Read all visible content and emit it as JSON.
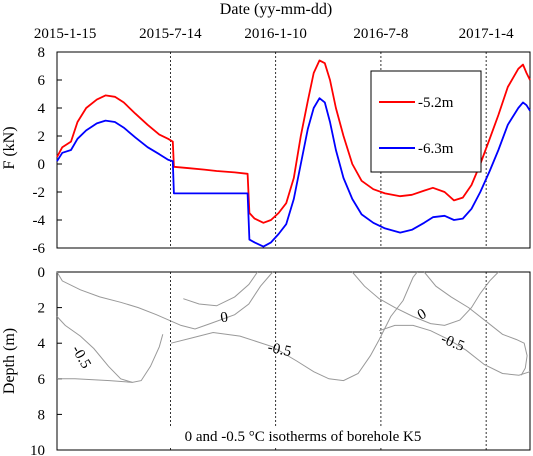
{
  "chart_data": [
    {
      "type": "line",
      "panel": "force",
      "title": "Date (yy-mm-dd)",
      "ylabel": "F (kN)",
      "xlim": [
        "2015-01-01",
        "2017-03-20"
      ],
      "ylim": [
        -6,
        8
      ],
      "yticks": [
        -6,
        -4,
        -2,
        0,
        2,
        4,
        6,
        8
      ],
      "date_ticks": [
        "2015-1-15",
        "2015-7-14",
        "2016-1-10",
        "2016-7-8",
        "2017-1-4"
      ],
      "date_tick_values": [
        "2015-01-15",
        "2015-07-14",
        "2016-01-10",
        "2016-07-08",
        "2017-01-04"
      ],
      "grid": "dotted vertical lines at inner date ticks",
      "legend_position": "right",
      "series": [
        {
          "name": "-5.2m",
          "color": "#ff0000",
          "points": [
            [
              "2015-01-01",
              0.5
            ],
            [
              "2015-01-10",
              1.2
            ],
            [
              "2015-01-25",
              1.6
            ],
            [
              "2015-02-05",
              3.0
            ],
            [
              "2015-02-20",
              4.0
            ],
            [
              "2015-03-10",
              4.6
            ],
            [
              "2015-03-25",
              4.9
            ],
            [
              "2015-04-10",
              4.8
            ],
            [
              "2015-04-25",
              4.4
            ],
            [
              "2015-05-15",
              3.6
            ],
            [
              "2015-06-05",
              2.8
            ],
            [
              "2015-06-25",
              2.1
            ],
            [
              "2015-07-10",
              1.8
            ],
            [
              "2015-07-18",
              1.6
            ],
            [
              "2015-07-20",
              -0.2
            ],
            [
              "2015-08-15",
              -0.3
            ],
            [
              "2015-09-10",
              -0.4
            ],
            [
              "2015-10-01",
              -0.5
            ],
            [
              "2015-11-01",
              -0.6
            ],
            [
              "2015-11-23",
              -0.7
            ],
            [
              "2015-11-26",
              -3.5
            ],
            [
              "2015-12-05",
              -3.9
            ],
            [
              "2015-12-20",
              -4.2
            ],
            [
              "2016-01-02",
              -4.0
            ],
            [
              "2016-01-15",
              -3.5
            ],
            [
              "2016-01-28",
              -2.8
            ],
            [
              "2016-02-10",
              -1.0
            ],
            [
              "2016-02-22",
              2.0
            ],
            [
              "2016-03-05",
              4.5
            ],
            [
              "2016-03-15",
              6.5
            ],
            [
              "2016-03-25",
              7.4
            ],
            [
              "2016-04-03",
              7.2
            ],
            [
              "2016-04-12",
              6.0
            ],
            [
              "2016-04-22",
              4.0
            ],
            [
              "2016-05-05",
              2.0
            ],
            [
              "2016-05-20",
              0.0
            ],
            [
              "2016-06-05",
              -1.2
            ],
            [
              "2016-06-25",
              -1.8
            ],
            [
              "2016-07-15",
              -2.1
            ],
            [
              "2016-08-10",
              -2.3
            ],
            [
              "2016-08-30",
              -2.2
            ],
            [
              "2016-09-20",
              -1.9
            ],
            [
              "2016-10-05",
              -1.7
            ],
            [
              "2016-10-25",
              -2.0
            ],
            [
              "2016-11-10",
              -2.6
            ],
            [
              "2016-11-25",
              -2.4
            ],
            [
              "2016-12-10",
              -1.5
            ],
            [
              "2016-12-25",
              0.0
            ],
            [
              "2017-01-10",
              1.8
            ],
            [
              "2017-01-25",
              3.5
            ],
            [
              "2017-02-10",
              5.5
            ],
            [
              "2017-02-28",
              6.8
            ],
            [
              "2017-03-08",
              7.1
            ],
            [
              "2017-03-14",
              6.5
            ],
            [
              "2017-03-20",
              6.0
            ]
          ]
        },
        {
          "name": "-6.3m",
          "color": "#0000ff",
          "points": [
            [
              "2015-01-01",
              0.2
            ],
            [
              "2015-01-10",
              0.8
            ],
            [
              "2015-01-25",
              1.0
            ],
            [
              "2015-02-05",
              1.8
            ],
            [
              "2015-02-20",
              2.4
            ],
            [
              "2015-03-10",
              2.9
            ],
            [
              "2015-03-25",
              3.1
            ],
            [
              "2015-04-10",
              3.0
            ],
            [
              "2015-04-25",
              2.6
            ],
            [
              "2015-05-15",
              1.9
            ],
            [
              "2015-06-05",
              1.2
            ],
            [
              "2015-06-25",
              0.7
            ],
            [
              "2015-07-10",
              0.3
            ],
            [
              "2015-07-18",
              0.2
            ],
            [
              "2015-07-20",
              -2.1
            ],
            [
              "2015-08-15",
              -2.1
            ],
            [
              "2015-09-10",
              -2.1
            ],
            [
              "2015-10-01",
              -2.1
            ],
            [
              "2015-11-01",
              -2.1
            ],
            [
              "2015-11-23",
              -2.1
            ],
            [
              "2015-11-26",
              -5.4
            ],
            [
              "2015-12-05",
              -5.6
            ],
            [
              "2015-12-20",
              -5.9
            ],
            [
              "2016-01-02",
              -5.6
            ],
            [
              "2016-01-15",
              -5.0
            ],
            [
              "2016-01-28",
              -4.3
            ],
            [
              "2016-02-10",
              -2.5
            ],
            [
              "2016-02-22",
              0.0
            ],
            [
              "2016-03-05",
              2.5
            ],
            [
              "2016-03-15",
              4.0
            ],
            [
              "2016-03-25",
              4.7
            ],
            [
              "2016-04-03",
              4.4
            ],
            [
              "2016-04-12",
              3.0
            ],
            [
              "2016-04-22",
              1.0
            ],
            [
              "2016-05-05",
              -1.0
            ],
            [
              "2016-05-20",
              -2.5
            ],
            [
              "2016-06-05",
              -3.6
            ],
            [
              "2016-06-25",
              -4.2
            ],
            [
              "2016-07-15",
              -4.6
            ],
            [
              "2016-08-10",
              -4.9
            ],
            [
              "2016-08-30",
              -4.7
            ],
            [
              "2016-09-20",
              -4.2
            ],
            [
              "2016-10-05",
              -3.8
            ],
            [
              "2016-10-25",
              -3.7
            ],
            [
              "2016-11-10",
              -4.0
            ],
            [
              "2016-11-25",
              -3.9
            ],
            [
              "2016-12-10",
              -3.2
            ],
            [
              "2016-12-25",
              -2.0
            ],
            [
              "2017-01-10",
              -0.5
            ],
            [
              "2017-01-25",
              1.0
            ],
            [
              "2017-02-10",
              2.8
            ],
            [
              "2017-02-28",
              4.0
            ],
            [
              "2017-03-08",
              4.4
            ],
            [
              "2017-03-14",
              4.2
            ],
            [
              "2017-03-20",
              3.8
            ]
          ]
        }
      ]
    },
    {
      "type": "line",
      "panel": "isotherm",
      "ylabel": "Depth (m)",
      "ylim": [
        0,
        10
      ],
      "y_inverted": true,
      "yticks": [
        0,
        2,
        4,
        6,
        8,
        10
      ],
      "annotation": "0 and -0.5 °C isotherms of borehole K5",
      "contour_labels": [
        {
          "text": "0",
          "date": "2015-10-15",
          "depth": 2.8,
          "rotate": -8
        },
        {
          "text": "-0.5",
          "date": "2015-02-05",
          "depth": 4.9,
          "rotate": 60
        },
        {
          "text": "-0.5",
          "date": "2016-01-15",
          "depth": 4.6,
          "rotate": 12
        },
        {
          "text": "0",
          "date": "2016-09-20",
          "depth": 2.6,
          "rotate": -30
        },
        {
          "text": "-0.5",
          "date": "2016-11-05",
          "depth": 4.2,
          "rotate": 22
        }
      ],
      "isotherms": [
        {
          "label": "0",
          "color": "#999999",
          "points": [
            [
              "2015-01-01",
              0.0
            ],
            [
              "2015-01-10",
              0.5
            ],
            [
              "2015-02-10",
              1.0
            ],
            [
              "2015-03-15",
              1.4
            ],
            [
              "2015-04-20",
              1.7
            ],
            [
              "2015-05-20",
              2.0
            ],
            [
              "2015-06-20",
              2.4
            ],
            [
              "2015-08-01",
              3.0
            ],
            [
              "2015-08-25",
              3.2
            ],
            [
              "2015-09-20",
              2.9
            ],
            [
              "2015-11-01",
              2.4
            ],
            [
              "2015-11-25",
              1.8
            ],
            [
              "2015-12-15",
              0.8
            ],
            [
              "2016-01-05",
              0.0
            ]
          ]
        },
        {
          "label": "0",
          "color": "#999999",
          "points": [
            [
              "2015-08-05",
              1.5
            ],
            [
              "2015-09-01",
              1.8
            ],
            [
              "2015-10-01",
              1.9
            ],
            [
              "2015-11-01",
              1.4
            ],
            [
              "2015-11-25",
              0.7
            ],
            [
              "2015-12-10",
              0.0
            ]
          ]
        },
        {
          "label": "-0.5",
          "color": "#999999",
          "points": [
            [
              "2015-01-01",
              2.5
            ],
            [
              "2015-01-15",
              3.0
            ],
            [
              "2015-02-10",
              3.6
            ],
            [
              "2015-03-05",
              4.3
            ],
            [
              "2015-03-30",
              5.3
            ],
            [
              "2015-04-20",
              6.0
            ],
            [
              "2015-05-10",
              6.2
            ],
            [
              "2015-05-25",
              6.1
            ],
            [
              "2015-06-10",
              5.3
            ],
            [
              "2015-06-25",
              4.2
            ],
            [
              "2015-07-01",
              3.5
            ]
          ]
        },
        {
          "label": "-0.5",
          "color": "#999999",
          "points": [
            [
              "2015-01-01",
              6.0
            ],
            [
              "2015-02-01",
              6.0
            ],
            [
              "2015-04-01",
              6.1
            ],
            [
              "2015-05-10",
              6.2
            ]
          ]
        },
        {
          "label": "-0.5",
          "color": "#999999",
          "points": [
            [
              "2015-07-15",
              4.0
            ],
            [
              "2015-08-20",
              3.7
            ],
            [
              "2015-09-25",
              3.4
            ],
            [
              "2015-11-10",
              3.6
            ],
            [
              "2016-01-05",
              4.2
            ],
            [
              "2016-02-15",
              5.0
            ],
            [
              "2016-03-15",
              5.6
            ],
            [
              "2016-04-10",
              6.0
            ],
            [
              "2016-05-05",
              6.1
            ],
            [
              "2016-05-30",
              5.7
            ],
            [
              "2016-06-20",
              4.7
            ],
            [
              "2016-07-05",
              3.8
            ],
            [
              "2016-07-25",
              2.5
            ],
            [
              "2016-08-15",
              1.6
            ],
            [
              "2016-09-01",
              0.3
            ],
            [
              "2016-09-08",
              0.0
            ]
          ]
        },
        {
          "label": "0",
          "color": "#999999",
          "points": [
            [
              "2016-05-20",
              0.0
            ],
            [
              "2016-06-10",
              0.8
            ],
            [
              "2016-07-05",
              1.5
            ],
            [
              "2016-08-01",
              2.0
            ],
            [
              "2016-09-01",
              2.5
            ],
            [
              "2016-10-01",
              2.9
            ],
            [
              "2016-10-25",
              3.0
            ],
            [
              "2016-11-20",
              2.7
            ],
            [
              "2016-12-10",
              2.0
            ],
            [
              "2016-12-25",
              1.2
            ],
            [
              "2017-01-10",
              0.5
            ],
            [
              "2017-01-25",
              0.0
            ]
          ]
        },
        {
          "label": "-0.5",
          "color": "#999999",
          "points": [
            [
              "2016-07-05",
              3.3
            ],
            [
              "2016-08-01",
              3.0
            ],
            [
              "2016-09-01",
              3.0
            ],
            [
              "2016-10-01",
              3.3
            ],
            [
              "2016-11-01",
              3.8
            ],
            [
              "2016-12-01",
              4.4
            ],
            [
              "2017-01-01",
              5.2
            ],
            [
              "2017-02-01",
              5.7
            ],
            [
              "2017-03-01",
              5.8
            ],
            [
              "2017-03-20",
              5.6
            ]
          ]
        },
        {
          "label": "-0.5",
          "color": "#999999",
          "points": [
            [
              "2016-09-20",
              0.0
            ],
            [
              "2016-10-10",
              0.8
            ],
            [
              "2016-11-05",
              1.4
            ],
            [
              "2016-12-05",
              2.0
            ],
            [
              "2017-01-05",
              2.8
            ],
            [
              "2017-02-01",
              3.5
            ],
            [
              "2017-02-25",
              3.8
            ],
            [
              "2017-03-10",
              4.0
            ],
            [
              "2017-03-15",
              4.7
            ],
            [
              "2017-03-12",
              5.4
            ],
            [
              "2017-03-05",
              5.8
            ]
          ]
        }
      ]
    }
  ]
}
